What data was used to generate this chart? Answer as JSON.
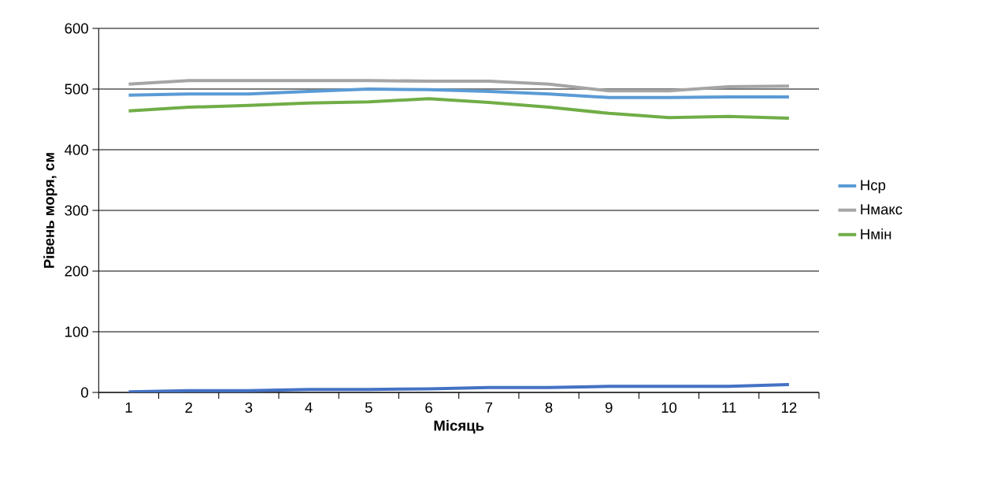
{
  "chart_data": {
    "type": "line",
    "xlabel": "Місяць",
    "ylabel": "Рівень моря, см",
    "categories": [
      "1",
      "2",
      "3",
      "4",
      "5",
      "6",
      "7",
      "8",
      "9",
      "10",
      "11",
      "12"
    ],
    "series": [
      {
        "name": "Hср",
        "color": "#5b9bd5",
        "values": [
          490,
          492,
          492,
          496,
          500,
          499,
          496,
          492,
          486,
          486,
          487,
          487
        ]
      },
      {
        "name": "Hмакс",
        "color": "#a5a5a5",
        "values": [
          508,
          514,
          514,
          514,
          514,
          513,
          513,
          508,
          497,
          497,
          504,
          505
        ]
      },
      {
        "name": "Hмін",
        "color": "#70ad47",
        "values": [
          464,
          470,
          473,
          477,
          479,
          484,
          478,
          470,
          460,
          453,
          455,
          452
        ]
      },
      {
        "color": "#4472c4",
        "values": [
          1,
          3,
          3,
          5,
          5,
          6,
          8,
          8,
          10,
          10,
          10,
          13
        ]
      }
    ],
    "ylim": [
      0,
      600
    ],
    "yticks": [
      0,
      100,
      200,
      300,
      400,
      500,
      600
    ],
    "grid": "y",
    "legend": "right",
    "marker": "none",
    "line_style": "solid"
  }
}
